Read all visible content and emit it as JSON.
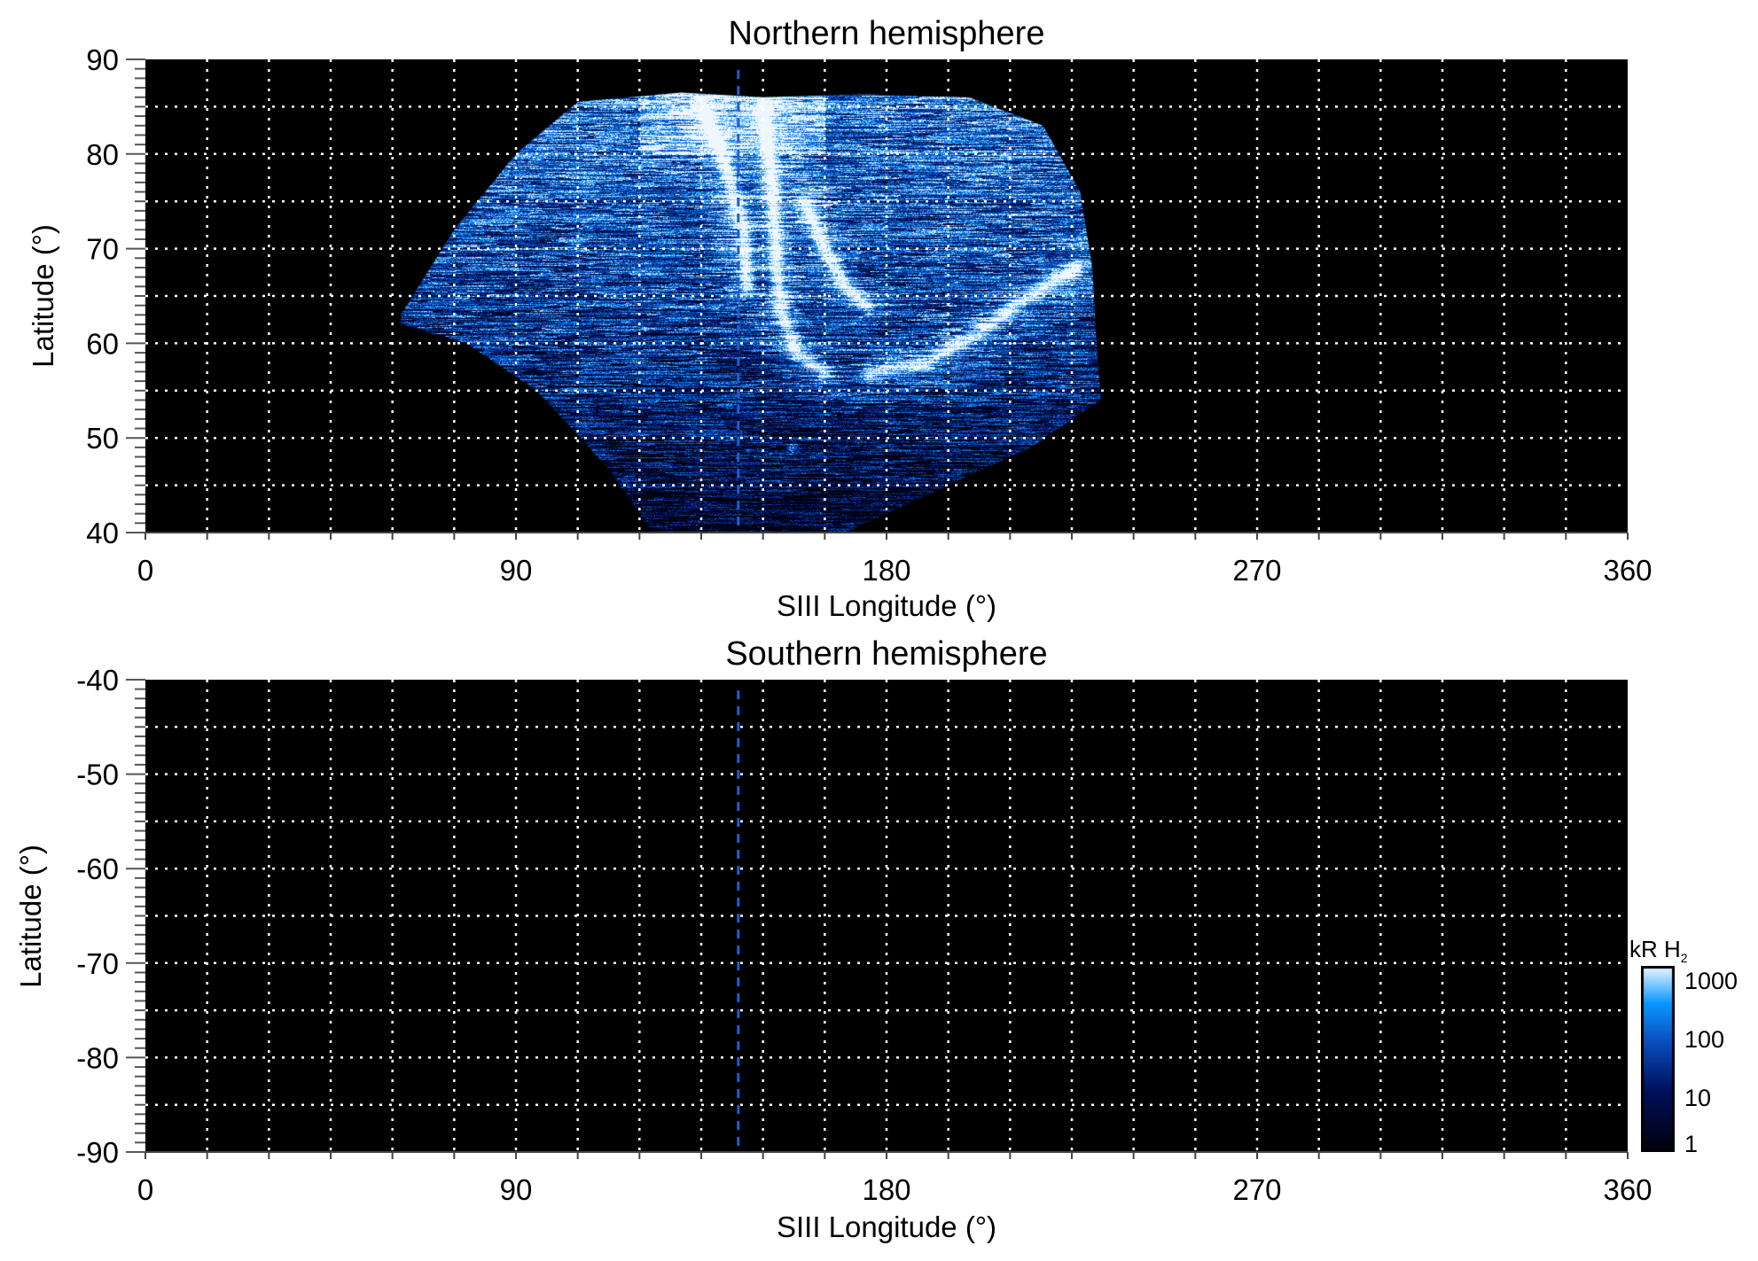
{
  "chart_data": [
    {
      "type": "heatmap",
      "title": "Northern hemisphere",
      "xlabel": "SIII Longitude (°)",
      "ylabel": "Latitude (°)",
      "xlim": [
        0,
        360
      ],
      "ylim": [
        40,
        90
      ],
      "xticks": [
        "0",
        "90",
        "180",
        "270",
        "360"
      ],
      "yticks": [
        "40",
        "50",
        "60",
        "70",
        "80",
        "90"
      ],
      "grid": true,
      "grid_lon_step": 15,
      "grid_lat_step": 5,
      "dashed_meridian_longitude": 144,
      "dashed_line_color": "#1f5fd0",
      "background": "#000000",
      "emission_present": true
    },
    {
      "type": "heatmap",
      "title": "Southern hemisphere",
      "xlabel": "SIII Longitude (°)",
      "ylabel": "Latitude (°)",
      "xlim": [
        0,
        360
      ],
      "ylim": [
        -90,
        -40
      ],
      "xticks": [
        "0",
        "90",
        "180",
        "270",
        "360"
      ],
      "yticks": [
        "-40",
        "-50",
        "-60",
        "-70",
        "-80",
        "-90"
      ],
      "grid": true,
      "grid_lon_step": 15,
      "grid_lat_step": 5,
      "dashed_meridian_longitude": 144,
      "dashed_line_color": "#1f5fd0",
      "background": "#000000",
      "emission_present": false
    }
  ],
  "colorbar": {
    "label_main": "kR H",
    "label_sub": "2",
    "scale": "log",
    "range": [
      1,
      1000
    ],
    "ticks": [
      "1000",
      "100",
      "10",
      "1"
    ],
    "colors": [
      "#000008",
      "#000f5a",
      "#0a4fc0",
      "#0898ff",
      "#eef6ff"
    ]
  }
}
